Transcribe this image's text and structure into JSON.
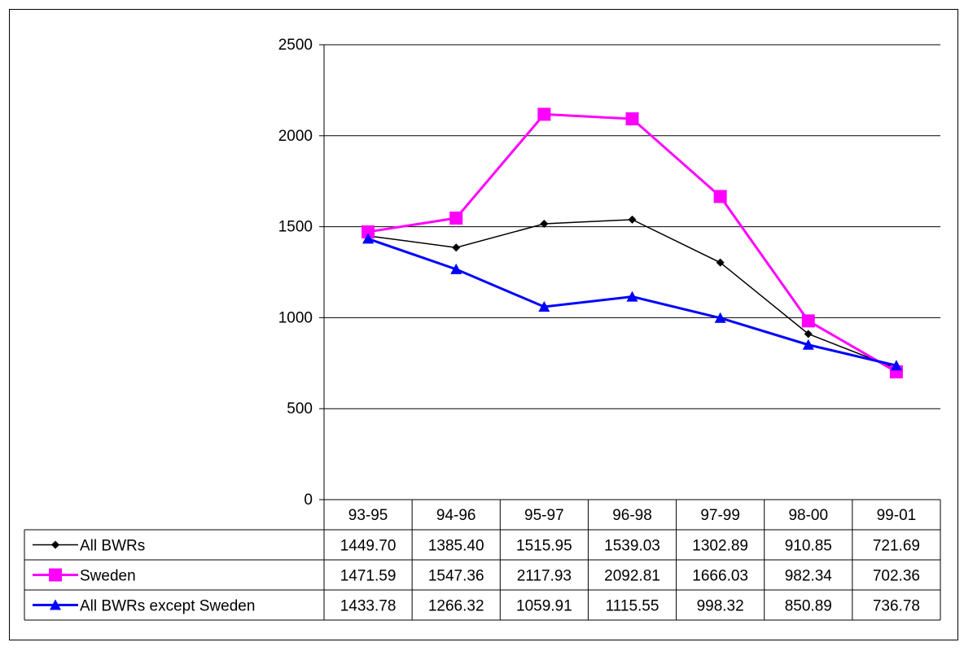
{
  "chart_data": {
    "type": "line",
    "categories": [
      "93-95",
      "94-96",
      "95-97",
      "96-98",
      "97-99",
      "98-00",
      "99-01"
    ],
    "ylim": [
      0,
      2500
    ],
    "yticks": [
      0,
      500,
      1000,
      1500,
      2000,
      2500
    ],
    "grid": true,
    "legend": "data-table",
    "series": [
      {
        "name": "All BWRs",
        "color": "#000000",
        "marker": "diamond",
        "labels": [
          "1449.70",
          "1385.40",
          "1515.95",
          "1539.03",
          "1302.89",
          "910.85",
          "721.69"
        ],
        "values": [
          1449.7,
          1385.4,
          1515.95,
          1539.03,
          1302.89,
          910.85,
          721.69
        ]
      },
      {
        "name": "Sweden",
        "color": "#ff00ff",
        "marker": "square",
        "labels": [
          "1471.59",
          "1547.36",
          "2117.93",
          "2092.81",
          "1666.03",
          "982.34",
          "702.36"
        ],
        "values": [
          1471.59,
          1547.36,
          2117.93,
          2092.81,
          1666.03,
          982.34,
          702.36
        ]
      },
      {
        "name": "All BWRs except Sweden",
        "color": "#0000ff",
        "marker": "triangle",
        "labels": [
          "1433.78",
          "1266.32",
          "1059.91",
          "1115.55",
          "998.32",
          "850.89",
          "736.78"
        ],
        "values": [
          1433.78,
          1266.32,
          1059.91,
          1115.55,
          998.32,
          850.89,
          736.78
        ]
      }
    ]
  }
}
